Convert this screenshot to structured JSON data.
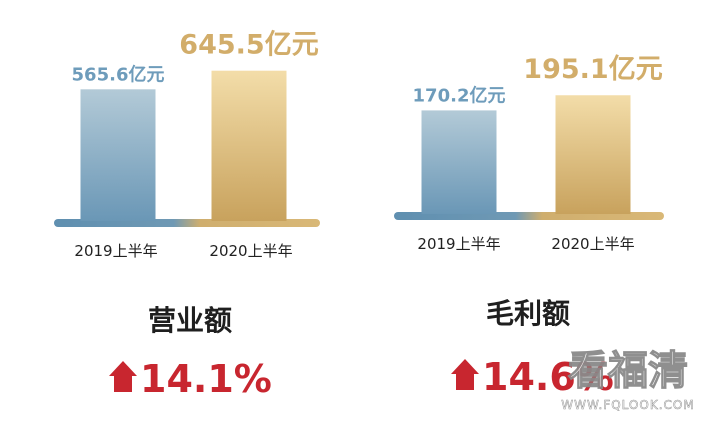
{
  "chart_data": [
    {
      "type": "bar",
      "title": "营业额",
      "categories": [
        "2019上半年",
        "2020上半年"
      ],
      "values": [
        565.6,
        645.5
      ],
      "value_labels": [
        "565.6亿元",
        "645.5亿元"
      ],
      "growth": "14.1%",
      "ylim": [
        0,
        700
      ],
      "grid": false,
      "colors": [
        "#7ba3bf",
        "#d6b577"
      ]
    },
    {
      "type": "bar",
      "title": "毛利额",
      "categories": [
        "2019上半年",
        "2020上半年"
      ],
      "values": [
        170.2,
        195.1
      ],
      "value_labels": [
        "170.2亿元",
        "195.1亿元"
      ],
      "growth": "14.6%",
      "ylim": [
        0,
        230
      ],
      "grid": false,
      "colors": [
        "#7ba3bf",
        "#d6b577"
      ]
    }
  ],
  "watermark": {
    "main": "看福清",
    "sub": "WWW.FQLOOK.COM"
  }
}
